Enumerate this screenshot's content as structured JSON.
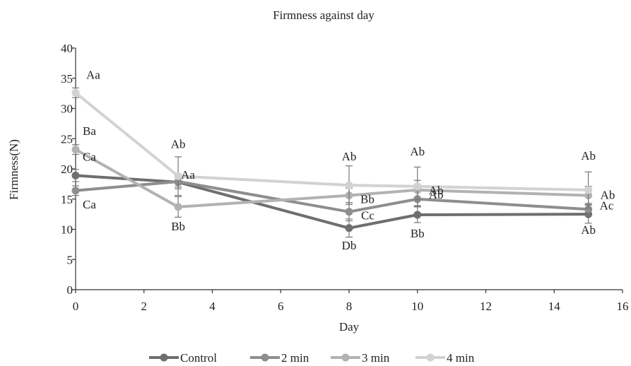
{
  "chart_data": {
    "type": "line",
    "title": "Firmness against day",
    "xlabel": "Day",
    "ylabel": "Firmness(N)",
    "xlim": [
      0,
      16
    ],
    "ylim": [
      0,
      40
    ],
    "xticks": [
      "0",
      "2",
      "4",
      "6",
      "8",
      "10",
      "12",
      "14",
      "16"
    ],
    "yticks": [
      "0",
      "5",
      "10",
      "15",
      "20",
      "25",
      "30",
      "35",
      "40"
    ],
    "grid": false,
    "legend_position": "bottom",
    "x": [
      0,
      3,
      8,
      10,
      15
    ],
    "series": [
      {
        "name": "Control",
        "color": "#6e6e6e",
        "values": [
          18.9,
          17.8,
          10.2,
          12.4,
          12.5
        ],
        "errors": [
          1.0,
          0.8,
          1.5,
          1.3,
          1.5
        ],
        "labels": [
          "",
          "",
          "Db",
          "Bb",
          "Ab"
        ]
      },
      {
        "name": "2 min",
        "color": "#8e8e8e",
        "values": [
          16.4,
          17.9,
          12.9,
          15.0,
          13.3
        ],
        "errors": [
          0.8,
          1.2,
          1.5,
          1.2,
          1.0
        ],
        "labels": [
          "Ca",
          "Aa",
          "Cc",
          "Ab",
          "Ac"
        ]
      },
      {
        "name": "3 min",
        "color": "#b2b2b2",
        "values": [
          23.2,
          13.7,
          15.6,
          16.5,
          15.6
        ],
        "errors": [
          0.8,
          1.7,
          1.2,
          1.6,
          1.5
        ],
        "labels": [
          "Ca",
          "Bb",
          "Bb",
          "Ab",
          "Ab"
        ]
      },
      {
        "name": "4 min",
        "color": "#d2d2d2",
        "values": [
          32.6,
          18.8,
          17.3,
          17.1,
          16.5
        ],
        "errors": [
          0.8,
          3.2,
          3.2,
          3.2,
          3.0
        ],
        "labels": [
          "Aa",
          "Ab",
          "Ab",
          "Ab",
          "Ab"
        ]
      }
    ],
    "extra_annotations": [
      {
        "text": "Ba",
        "x": 0,
        "y": 26.3
      }
    ]
  }
}
